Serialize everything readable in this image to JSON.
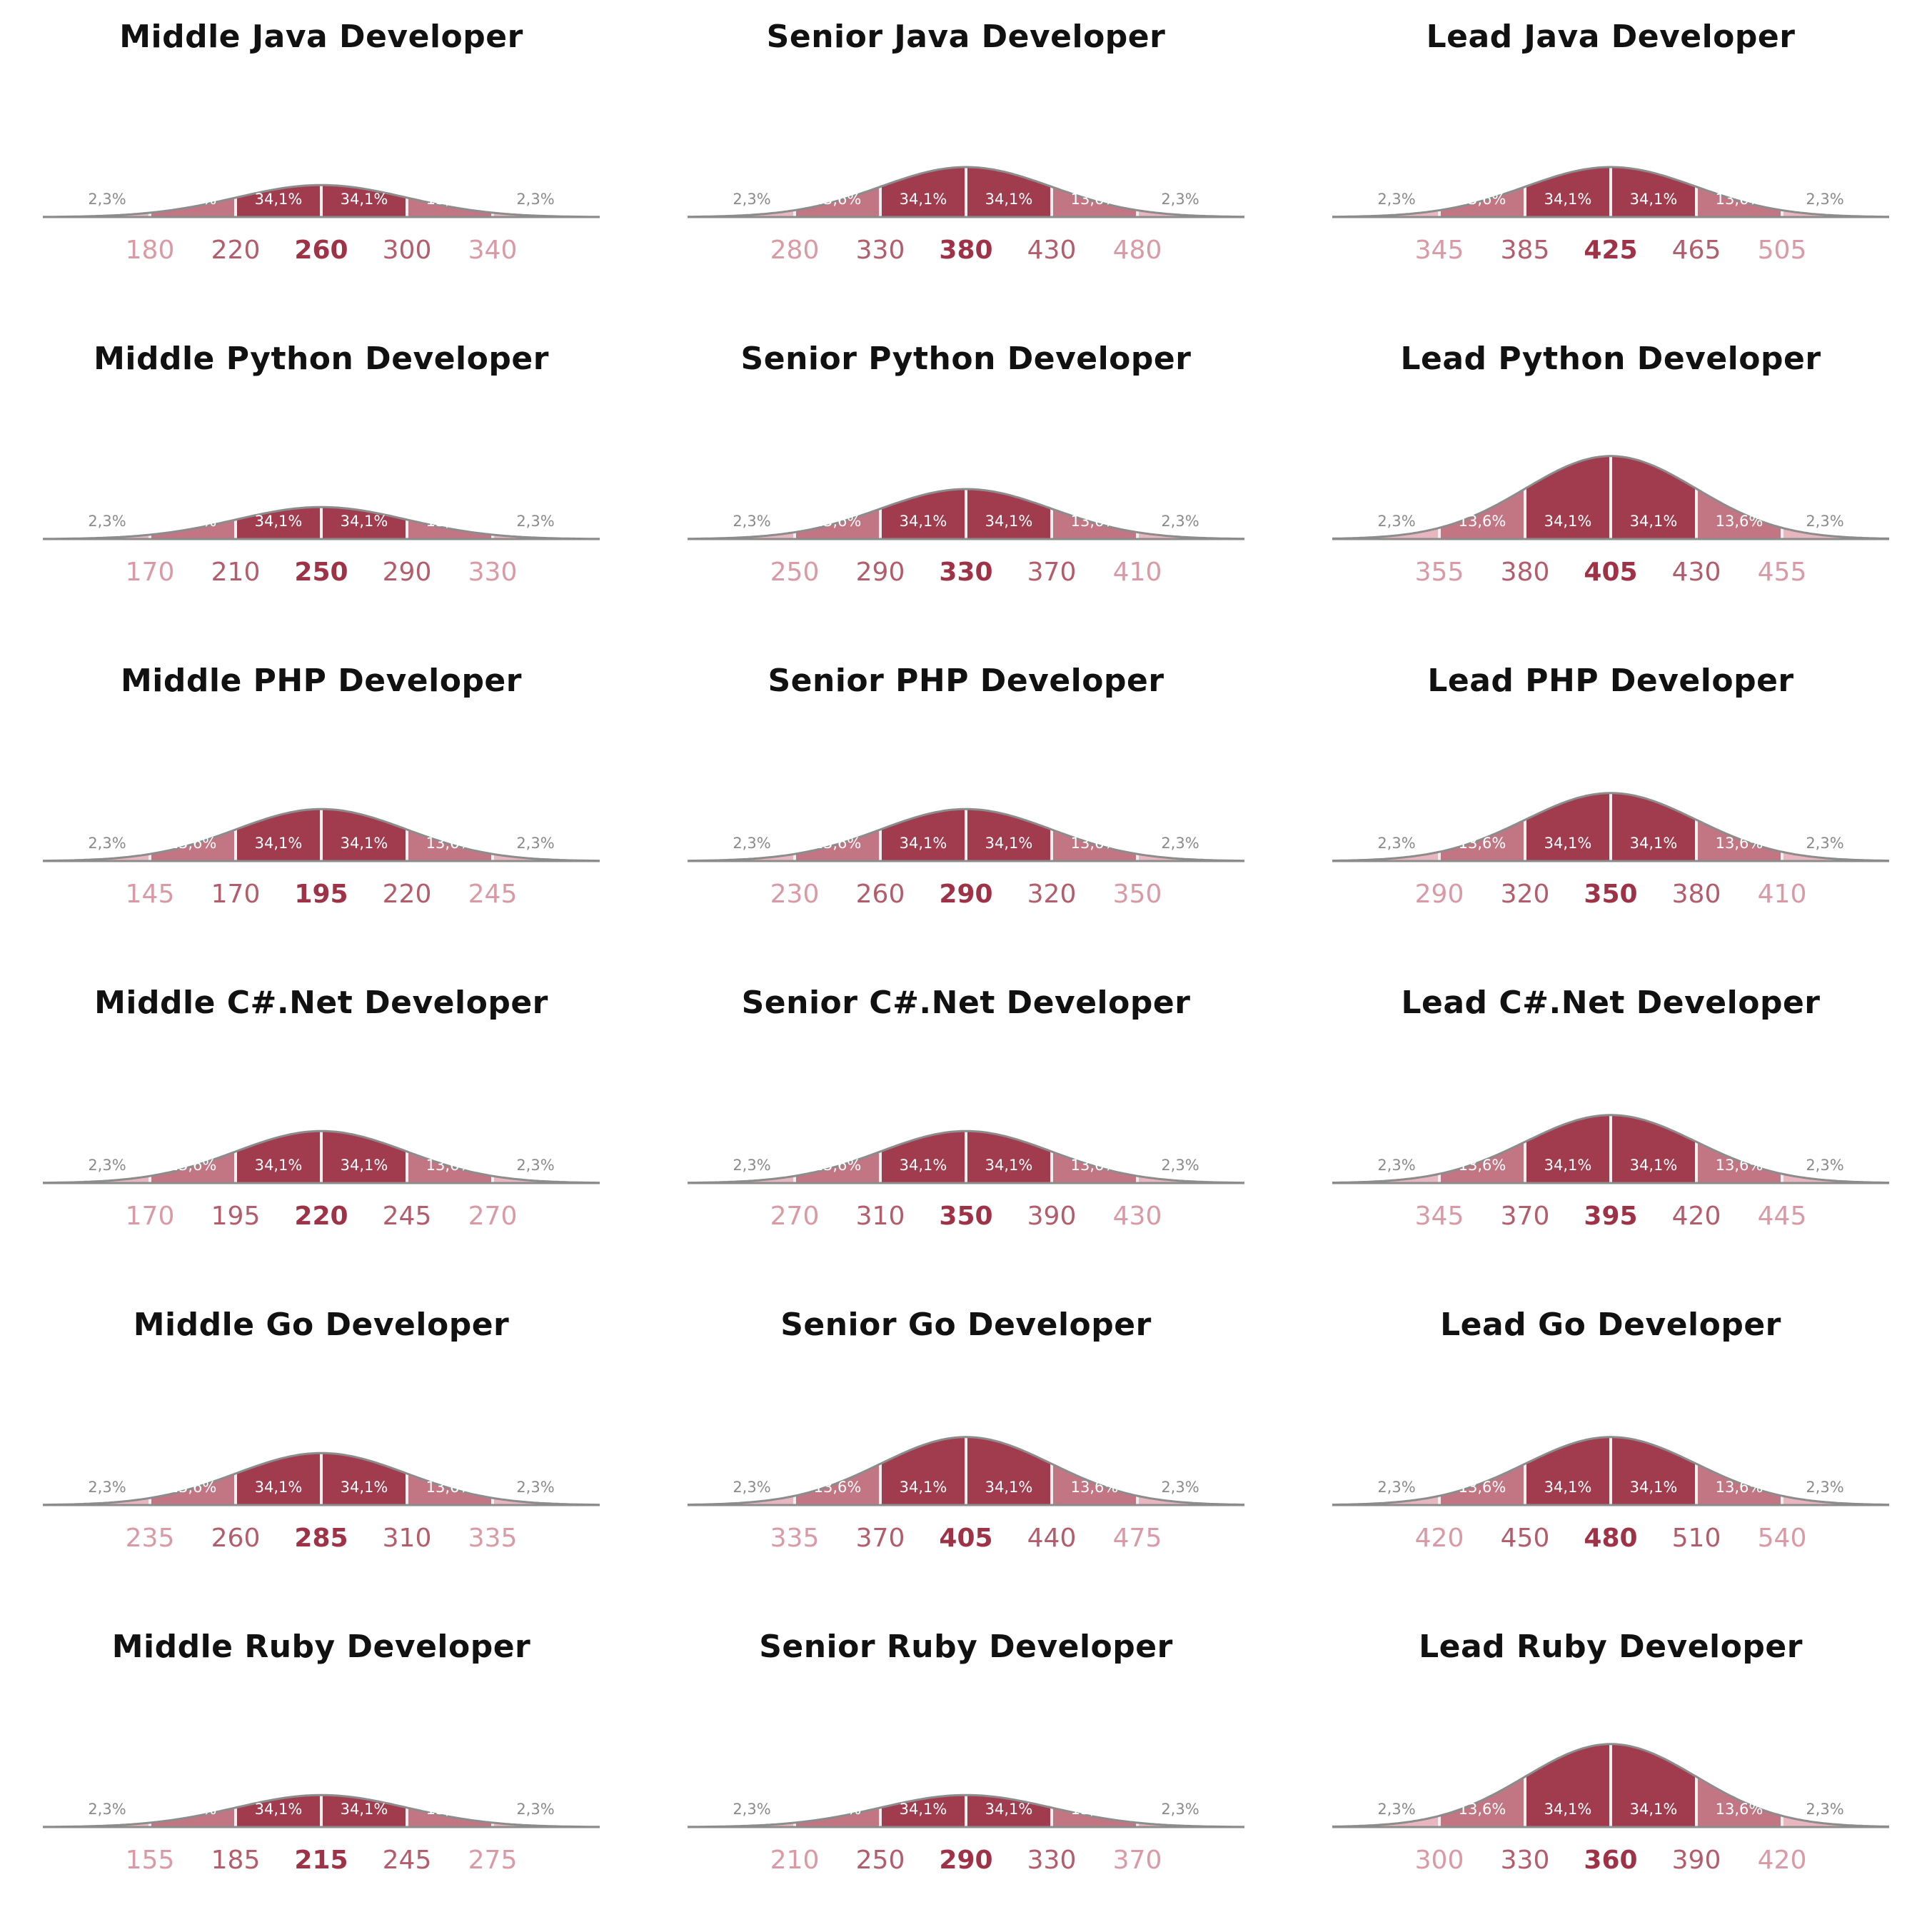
{
  "colors": {
    "center": "#a03c4e",
    "inner": "#c27683",
    "outer": "#e7b6be",
    "outline": "#8c8c8c",
    "divider": "#f0f0f0",
    "label_center": "#9e3347",
    "label_inner": "#b35c6c",
    "label_outer": "#d99aa6",
    "label_outer_pct": "#8a8a8a"
  },
  "chart_data": [
    {
      "type": "area",
      "title": "Middle Java Developer",
      "ticks": [
        180,
        220,
        260,
        300,
        340
      ],
      "segment_labels": [
        "2,3%",
        "13,6%",
        "34,1%",
        "34,1%",
        "13,6%",
        "2,3%"
      ],
      "peak": 0.32
    },
    {
      "type": "area",
      "title": "Senior Java Developer",
      "ticks": [
        280,
        330,
        380,
        430,
        480
      ],
      "segment_labels": [
        "2,3%",
        "13,6%",
        "34,1%",
        "34,1%",
        "13,6%",
        "2,3%"
      ],
      "peak": 0.5
    },
    {
      "type": "area",
      "title": "Lead Java Developer",
      "ticks": [
        345,
        385,
        425,
        465,
        505
      ],
      "segment_labels": [
        "2,3%",
        "13,6%",
        "34,1%",
        "34,1%",
        "13,6%",
        "2,3%"
      ],
      "peak": 0.5
    },
    {
      "type": "area",
      "title": "Middle Python Developer",
      "ticks": [
        170,
        210,
        250,
        290,
        330
      ],
      "segment_labels": [
        "2,3%",
        "13,6%",
        "34,1%",
        "34,1%",
        "13,6%",
        "2,3%"
      ],
      "peak": 0.32
    },
    {
      "type": "area",
      "title": "Senior Python Developer",
      "ticks": [
        250,
        290,
        330,
        370,
        410
      ],
      "segment_labels": [
        "2,3%",
        "13,6%",
        "34,1%",
        "34,1%",
        "13,6%",
        "2,3%"
      ],
      "peak": 0.5
    },
    {
      "type": "area",
      "title": "Lead Python Developer",
      "ticks": [
        355,
        380,
        405,
        430,
        455
      ],
      "segment_labels": [
        "2,3%",
        "13,6%",
        "34,1%",
        "34,1%",
        "13,6%",
        "2,3%"
      ],
      "peak": 0.83
    },
    {
      "type": "area",
      "title": "Middle PHP Developer",
      "ticks": [
        145,
        170,
        195,
        220,
        245
      ],
      "segment_labels": [
        "2,3%",
        "13,6%",
        "34,1%",
        "34,1%",
        "13,6%",
        "2,3%"
      ],
      "peak": 0.52
    },
    {
      "type": "area",
      "title": "Senior PHP Developer",
      "ticks": [
        230,
        260,
        290,
        320,
        350
      ],
      "segment_labels": [
        "2,3%",
        "13,6%",
        "34,1%",
        "34,1%",
        "13,6%",
        "2,3%"
      ],
      "peak": 0.52
    },
    {
      "type": "area",
      "title": "Lead PHP Developer",
      "ticks": [
        290,
        320,
        350,
        380,
        410
      ],
      "segment_labels": [
        "2,3%",
        "13,6%",
        "34,1%",
        "34,1%",
        "13,6%",
        "2,3%"
      ],
      "peak": 0.68
    },
    {
      "type": "area",
      "title": "Middle C#.Net Developer",
      "ticks": [
        170,
        195,
        220,
        245,
        270
      ],
      "segment_labels": [
        "2,3%",
        "13,6%",
        "34,1%",
        "34,1%",
        "13,6%",
        "2,3%"
      ],
      "peak": 0.52
    },
    {
      "type": "area",
      "title": "Senior C#.Net Developer",
      "ticks": [
        270,
        310,
        350,
        390,
        430
      ],
      "segment_labels": [
        "2,3%",
        "13,6%",
        "34,1%",
        "34,1%",
        "13,6%",
        "2,3%"
      ],
      "peak": 0.52
    },
    {
      "type": "area",
      "title": "Lead C#.Net Developer",
      "ticks": [
        345,
        370,
        395,
        420,
        445
      ],
      "segment_labels": [
        "2,3%",
        "13,6%",
        "34,1%",
        "34,1%",
        "13,6%",
        "2,3%"
      ],
      "peak": 0.68
    },
    {
      "type": "area",
      "title": "Middle Go Developer",
      "ticks": [
        235,
        260,
        285,
        310,
        335
      ],
      "segment_labels": [
        "2,3%",
        "13,6%",
        "34,1%",
        "34,1%",
        "13,6%",
        "2,3%"
      ],
      "peak": 0.52
    },
    {
      "type": "area",
      "title": "Senior Go Developer",
      "ticks": [
        335,
        370,
        405,
        440,
        475
      ],
      "segment_labels": [
        "2,3%",
        "13,6%",
        "34,1%",
        "34,1%",
        "13,6%",
        "2,3%"
      ],
      "peak": 0.68
    },
    {
      "type": "area",
      "title": "Lead Go Developer",
      "ticks": [
        420,
        450,
        480,
        510,
        540
      ],
      "segment_labels": [
        "2,3%",
        "13,6%",
        "34,1%",
        "34,1%",
        "13,6%",
        "2,3%"
      ],
      "peak": 0.68
    },
    {
      "type": "area",
      "title": "Middle Ruby Developer",
      "ticks": [
        155,
        185,
        215,
        245,
        275
      ],
      "segment_labels": [
        "2,3%",
        "13,6%",
        "34,1%",
        "34,1%",
        "13,6%",
        "2,3%"
      ],
      "peak": 0.32
    },
    {
      "type": "area",
      "title": "Senior Ruby Developer",
      "ticks": [
        210,
        250,
        290,
        330,
        370
      ],
      "segment_labels": [
        "2,3%",
        "13,6%",
        "34,1%",
        "34,1%",
        "13,6%",
        "2,3%"
      ],
      "peak": 0.32
    },
    {
      "type": "area",
      "title": "Lead Ruby Developer",
      "ticks": [
        300,
        330,
        360,
        390,
        420
      ],
      "segment_labels": [
        "2,3%",
        "13,6%",
        "34,1%",
        "34,1%",
        "13,6%",
        "2,3%"
      ],
      "peak": 0.83
    }
  ]
}
